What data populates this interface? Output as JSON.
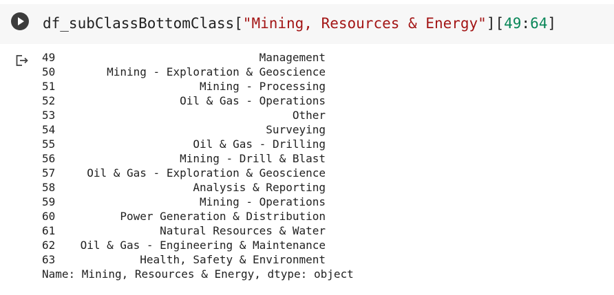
{
  "cell": {
    "code": {
      "prefix": "df_subClassBottomClass[",
      "string": "\"Mining, Resources & Energy\"",
      "middle": "][",
      "start": "49",
      "colon": ":",
      "end": "64",
      "suffix": "]"
    },
    "output": {
      "rows": [
        {
          "index": "49",
          "value": "Management"
        },
        {
          "index": "50",
          "value": "Mining - Exploration & Geoscience"
        },
        {
          "index": "51",
          "value": "Mining - Processing"
        },
        {
          "index": "52",
          "value": "Oil & Gas - Operations"
        },
        {
          "index": "53",
          "value": "Other"
        },
        {
          "index": "54",
          "value": "Surveying"
        },
        {
          "index": "55",
          "value": "Oil & Gas - Drilling"
        },
        {
          "index": "56",
          "value": "Mining - Drill & Blast"
        },
        {
          "index": "57",
          "value": "Oil & Gas - Exploration & Geoscience"
        },
        {
          "index": "58",
          "value": "Analysis & Reporting"
        },
        {
          "index": "59",
          "value": "Mining - Operations"
        },
        {
          "index": "60",
          "value": "Power Generation & Distribution"
        },
        {
          "index": "61",
          "value": "Natural Resources & Water"
        },
        {
          "index": "62",
          "value": "Oil & Gas - Engineering & Maintenance"
        },
        {
          "index": "63",
          "value": "Health, Safety & Environment"
        }
      ],
      "footer": "Name: Mining, Resources & Energy, dtype: object"
    }
  },
  "icons": {
    "run": "play-circle-icon",
    "output": "output-arrow-icon"
  }
}
